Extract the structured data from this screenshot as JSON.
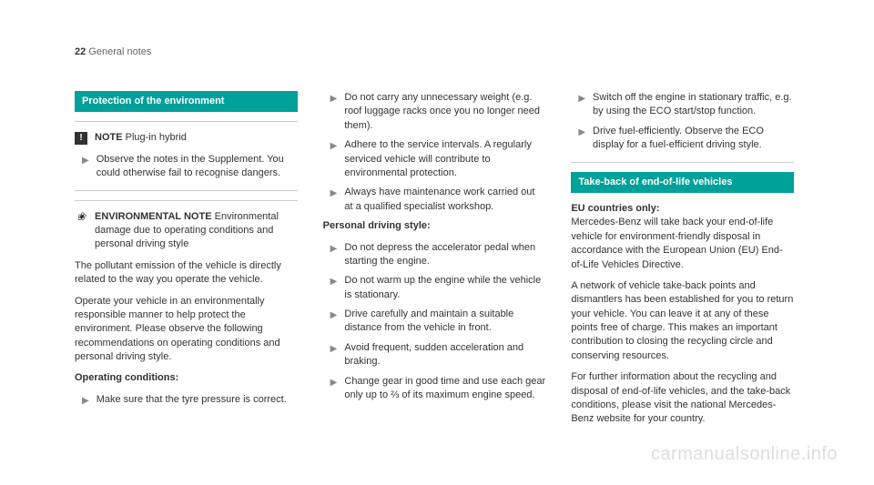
{
  "page": {
    "number": "22",
    "section": "General notes"
  },
  "col1": {
    "header": "Protection of the environment",
    "note": {
      "label": "NOTE",
      "text": "Plug-in hybrid"
    },
    "bullet1": "Observe the notes in the Supplement. You could otherwise fail to recognise dangers.",
    "env": {
      "label": "ENVIRONMENTAL NOTE",
      "text": "Environmental damage due to operating conditions and personal driving style"
    },
    "p1": "The pollutant emission of the vehicle is directly related to the way you operate the vehicle.",
    "p2": "Operate your vehicle in an environmentally responsible manner to help protect the environment. Please observe the following recommendations on operating conditions and personal driving style.",
    "sub1": "Operating conditions:",
    "b1": "Make sure that the tyre pressure is correct."
  },
  "col2": {
    "b1": "Do not carry any unnecessary weight (e.g. roof luggage racks once you no longer need them).",
    "b2": "Adhere to the service intervals. A regularly serviced vehicle will contribute to environmental protection.",
    "b3": "Always have maintenance work carried out at a qualified specialist workshop.",
    "sub1": "Personal driving style:",
    "b4": "Do not depress the accelerator pedal when starting the engine.",
    "b5": "Do not warm up the engine while the vehicle is stationary.",
    "b6": "Drive carefully and maintain a suitable distance from the vehicle in front.",
    "b7": "Avoid frequent, sudden acceleration and braking.",
    "b8": "Change gear in good time and use each gear only up to ⅔ of its maximum engine speed."
  },
  "col3": {
    "b1": "Switch off the engine in stationary traffic, e.g. by using the ECO start/stop function.",
    "b2": "Drive fuel-efficiently. Observe the ECO display for a fuel-efficient driving style.",
    "header": "Take-back of end-of-life vehicles",
    "sub1": "EU countries only:",
    "p1": "Mercedes-Benz will take back your end-of-life vehicle for environment-friendly disposal in accordance with the European Union (EU) End-of-Life Vehicles Directive.",
    "p2": "A network of vehicle take-back points and dismantlers has been established for you to return your vehicle. You can leave it at any of these points free of charge. This makes an important contribution to closing the recycling circle and conserving resources.",
    "p3": "For further information about the recycling and disposal of end-of-life vehicles, and the take-back conditions, please visit the national Mercedes-Benz website for your country."
  },
  "watermark": "carmanualsonline.info"
}
